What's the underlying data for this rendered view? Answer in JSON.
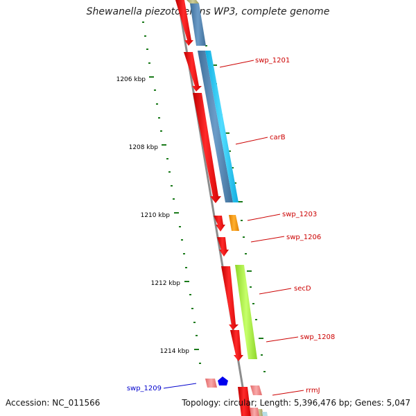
{
  "header": {
    "title": "Shewanella piezotolerans WP3, complete genome"
  },
  "footer": {
    "accession": "Accession: NC_011566",
    "summary": "Topology: circular; Length: 5,396,476 bp; Genes: 5,047"
  },
  "ticks": [
    "1206 kbp",
    "1208 kbp",
    "1210 kbp",
    "1212 kbp",
    "1214 kbp"
  ],
  "genes": [
    "swp_1201",
    "carB",
    "swp_1203",
    "swp_1206",
    "secD",
    "swp_1208",
    "swp_1209",
    "rrmJ"
  ],
  "colors": {
    "cds": "#ff0000",
    "rna_pink": "#f08080",
    "backbone": "#8c8c8c",
    "tick": "#1a7a1a",
    "label_forward": "#cc0000",
    "label_reverse": "#0000cc",
    "track_steelblue": "#4f86b4",
    "track_cyan": "#1ec8ee",
    "track_orange": "#ff9900",
    "track_lime": "#a8f03a",
    "track_olive": "#b3b37a",
    "track_blue": "#0000ff"
  }
}
